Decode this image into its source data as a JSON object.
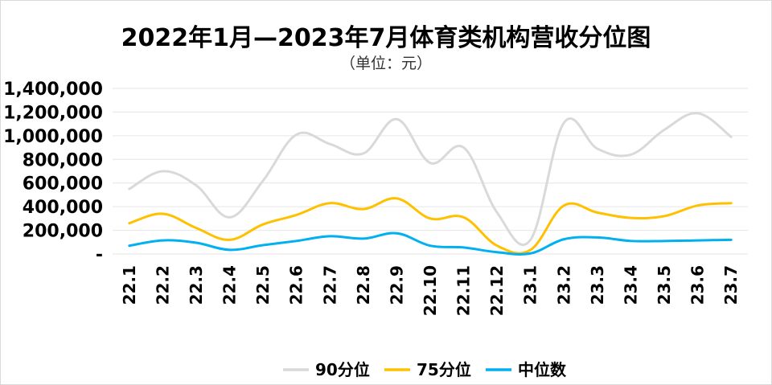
{
  "title": "2022年1月—2023年7月体育类机构营收分位图",
  "subtitle": "（单位：元）",
  "chart_data": {
    "type": "line",
    "title": "2022年1月—2023年7月体育类机构营收分位图",
    "unit": "（单位：元）",
    "categories": [
      "22.1",
      "22.2",
      "22.3",
      "22.4",
      "22.5",
      "22.6",
      "22.7",
      "22.8",
      "22.9",
      "22.10",
      "22.11",
      "22.12",
      "23.1",
      "23.2",
      "23.3",
      "23.4",
      "23.5",
      "23.6",
      "23.7"
    ],
    "ylim": [
      0,
      1400000
    ],
    "yticks": [
      0,
      200000,
      400000,
      600000,
      800000,
      1000000,
      1200000,
      1400000
    ],
    "ytick_labels": [
      "-",
      "200,000",
      "400,000",
      "600,000",
      "800,000",
      "1,000,000",
      "1,200,000",
      "1,400,000"
    ],
    "grid": true,
    "legend_position": "bottom",
    "series": [
      {
        "name": "90分位",
        "color": "#d9d9d9",
        "values": [
          550000,
          700000,
          580000,
          310000,
          620000,
          1010000,
          930000,
          850000,
          1140000,
          770000,
          900000,
          350000,
          120000,
          1110000,
          890000,
          840000,
          1050000,
          1190000,
          990000
        ]
      },
      {
        "name": "75分位",
        "color": "#ffc000",
        "values": [
          260000,
          340000,
          220000,
          120000,
          250000,
          330000,
          430000,
          380000,
          470000,
          300000,
          310000,
          70000,
          35000,
          410000,
          350000,
          305000,
          320000,
          410000,
          430000
        ]
      },
      {
        "name": "中位数",
        "color": "#00b0f0",
        "values": [
          70000,
          115000,
          95000,
          35000,
          75000,
          110000,
          150000,
          130000,
          175000,
          70000,
          55000,
          15000,
          5000,
          125000,
          140000,
          110000,
          110000,
          115000,
          120000
        ]
      }
    ]
  }
}
